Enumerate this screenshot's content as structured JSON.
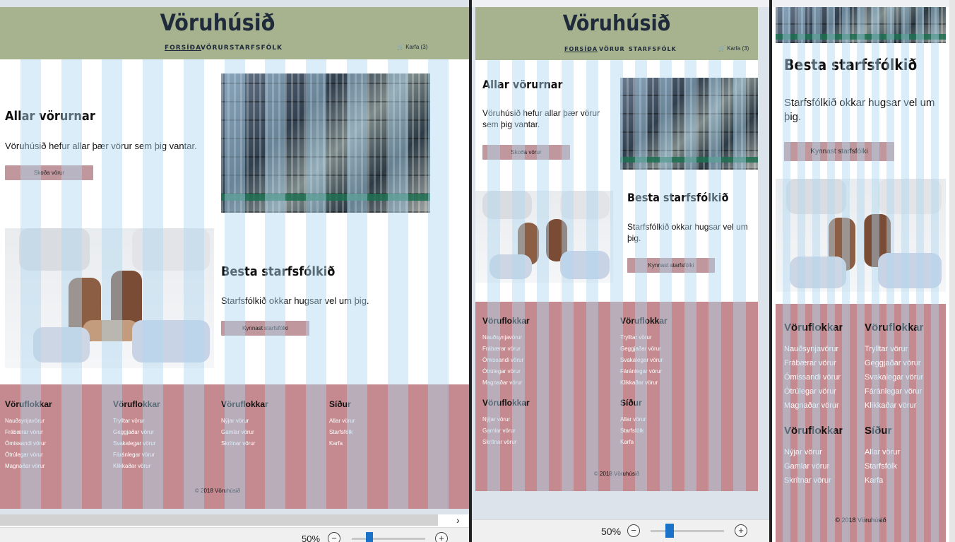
{
  "site": {
    "brand": "Vöruhúsið",
    "nav": [
      "FORSÍÐA",
      "VÖRUR",
      "STARFSFÓLK"
    ],
    "cart_label": "Karfa (3)",
    "hero": {
      "title": "Allar vörurnar",
      "text": "Vöruhúsið hefur allar þær vörur sem þig vantar.",
      "button": "Skoða vörur"
    },
    "staff": {
      "title": "Besta starfsfólkið",
      "text": "Starfsfólkið okkar hugsar vel um þig.",
      "button": "Kynnast starfsfólki"
    },
    "footer": {
      "columns": [
        {
          "title": "Vöruflokkar",
          "links": [
            "Nauðsynjavörur",
            "Frábærar vörur",
            "Ómissandi vörur",
            "Ótrúlegar vörur",
            "Magnaðar vörur"
          ]
        },
        {
          "title": "Vöruflokkar",
          "links": [
            "Trylltar vörur",
            "Geggjaðar vörur",
            "Svakalegar vörur",
            "Fáránlegar vörur",
            "Klikkaðar vörur"
          ]
        },
        {
          "title": "Vöruflokkar",
          "links": [
            "Nýjar vörur",
            "Gamlar vörur",
            "Skrítnar vörur"
          ]
        },
        {
          "title": "Síður",
          "links": [
            "Allar vörur",
            "Starfsfólk",
            "Karfa"
          ]
        }
      ],
      "copyright": "© 2018 Vöruhúsið"
    }
  },
  "viewer": {
    "zoom_left": "50%",
    "zoom_middle": "50%",
    "zoom_minus": "−",
    "zoom_plus": "+",
    "scroll_right_icon": "chevron-right-icon"
  },
  "colors": {
    "header": "#a7b28e",
    "footer": "#c48a8f",
    "button": "#c0979d",
    "grid_overlay": "#b0d6f0"
  }
}
